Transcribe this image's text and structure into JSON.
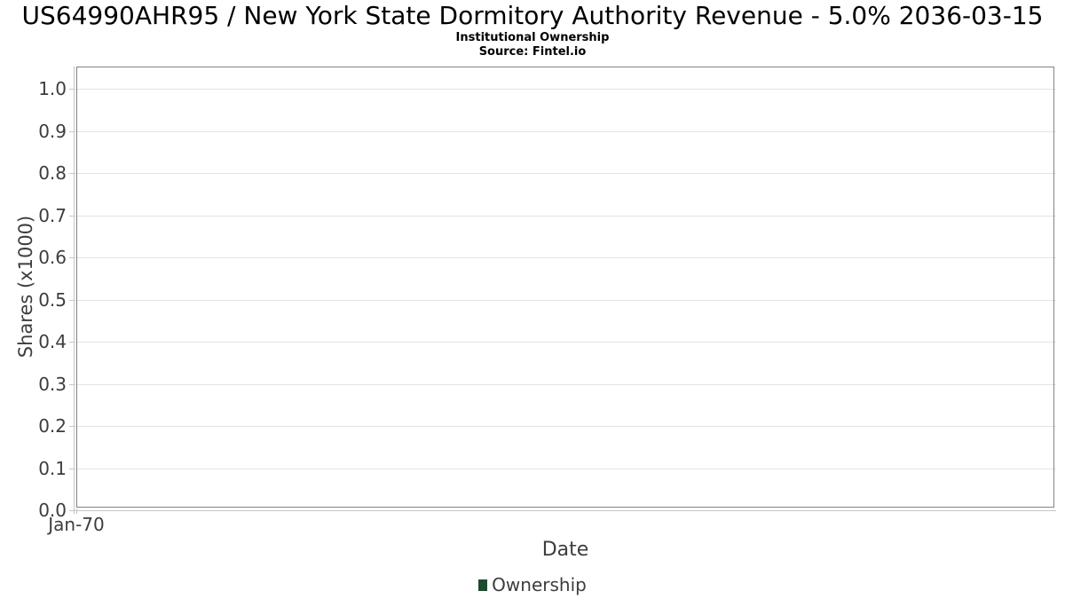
{
  "chart_data": {
    "type": "line",
    "title": "US64990AHR95 / New York State Dormitory Authority Revenue - 5.0% 2036-03-15",
    "subtitle": "Institutional Ownership",
    "source": "Source: Fintel.io",
    "xlabel": "Date",
    "ylabel": "Shares (x1000)",
    "x_ticks": [
      "Jan-70"
    ],
    "y_ticks": [
      0.0,
      0.1,
      0.2,
      0.3,
      0.4,
      0.5,
      0.6,
      0.7,
      0.8,
      0.9,
      1.0
    ],
    "y_tick_decimals": 1,
    "ylim": [
      0.0,
      1.05
    ],
    "grid": true,
    "legend": {
      "position": "bottom",
      "entries": [
        {
          "label": "Ownership",
          "color": "#1e4b2d"
        }
      ]
    },
    "series": [
      {
        "name": "Ownership",
        "color": "#1e4b2d",
        "points": []
      }
    ],
    "colors": {
      "background": "#ffffff",
      "plot_border": "#828282",
      "gridline": "#e3e3e3",
      "axis_line": "#c6c6c6",
      "tick_text": "#3d3d3d",
      "title_text": "#000000"
    }
  }
}
